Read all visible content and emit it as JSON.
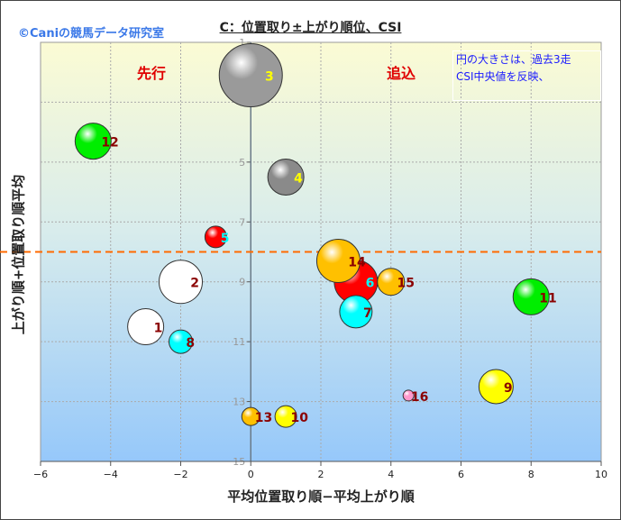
{
  "copyright": "©Caniの競馬データ研究室",
  "chart_data": {
    "type": "bubble",
    "title": "C：位置取り±上がり順位、CSI",
    "xlabel": "平均位置取り順−平均上がり順",
    "ylabel": "上がり順+位置取り順平均",
    "xlim": [
      -6,
      10
    ],
    "ylim": [
      1,
      15
    ],
    "y_reversed": true,
    "xticks": [
      -6,
      -4,
      -2,
      0,
      2,
      4,
      6,
      8,
      10
    ],
    "yticks": [
      1,
      3,
      5,
      7,
      9,
      11,
      13,
      15
    ],
    "grid": true,
    "reference_line": {
      "y": 8,
      "color": "#ff6a00",
      "style": "dashed"
    },
    "annotations": {
      "front": "先行",
      "closer": "追込",
      "note_line1": "円の大きさは、過去3走",
      "note_line2": "CSI中央値を反映、"
    },
    "points": [
      {
        "label": "1",
        "x": -3,
        "y": 10.5,
        "size": 20,
        "color": "#ffffff",
        "label_color": "#8b0000"
      },
      {
        "label": "2",
        "x": -2,
        "y": 9,
        "size": 24,
        "color": "#ffffff",
        "label_color": "#8b0000"
      },
      {
        "label": "3",
        "x": 0,
        "y": 2.1,
        "size": 35,
        "color": "#9a9a9a",
        "label_color": "#ffff00"
      },
      {
        "label": "4",
        "x": 1,
        "y": 5.5,
        "size": 20,
        "color": "#8a8a8a",
        "label_color": "#ffff00"
      },
      {
        "label": "5",
        "x": -1,
        "y": 7.5,
        "size": 12,
        "color": "#ff0000",
        "label_color": "#00ffff"
      },
      {
        "label": "6",
        "x": 3,
        "y": 9,
        "size": 24,
        "color": "#ff0000",
        "label_color": "#00ffff"
      },
      {
        "label": "7",
        "x": 3,
        "y": 10,
        "size": 18,
        "color": "#00ffff",
        "label_color": "#8b0000"
      },
      {
        "label": "8",
        "x": -2,
        "y": 11,
        "size": 13,
        "color": "#00ffff",
        "label_color": "#8b0000"
      },
      {
        "label": "9",
        "x": 7,
        "y": 12.5,
        "size": 19,
        "color": "#ffff00",
        "label_color": "#8b0000"
      },
      {
        "label": "10",
        "x": 1,
        "y": 13.5,
        "size": 12,
        "color": "#ffff00",
        "label_color": "#8b0000"
      },
      {
        "label": "11",
        "x": 8,
        "y": 9.5,
        "size": 20,
        "color": "#00ee00",
        "label_color": "#8b0000"
      },
      {
        "label": "12",
        "x": -4.5,
        "y": 4.3,
        "size": 20,
        "color": "#00ee00",
        "label_color": "#8b0000"
      },
      {
        "label": "13",
        "x": 0,
        "y": 13.5,
        "size": 10,
        "color": "#ffc000",
        "label_color": "#8b0000"
      },
      {
        "label": "14",
        "x": 2.5,
        "y": 8.3,
        "size": 24,
        "color": "#ffc000",
        "label_color": "#8b0000"
      },
      {
        "label": "15",
        "x": 4,
        "y": 9,
        "size": 15,
        "color": "#ffc000",
        "label_color": "#8b0000"
      },
      {
        "label": "16",
        "x": 4.5,
        "y": 12.8,
        "size": 6,
        "color": "#ff99cc",
        "label_color": "#8b0000"
      }
    ]
  }
}
